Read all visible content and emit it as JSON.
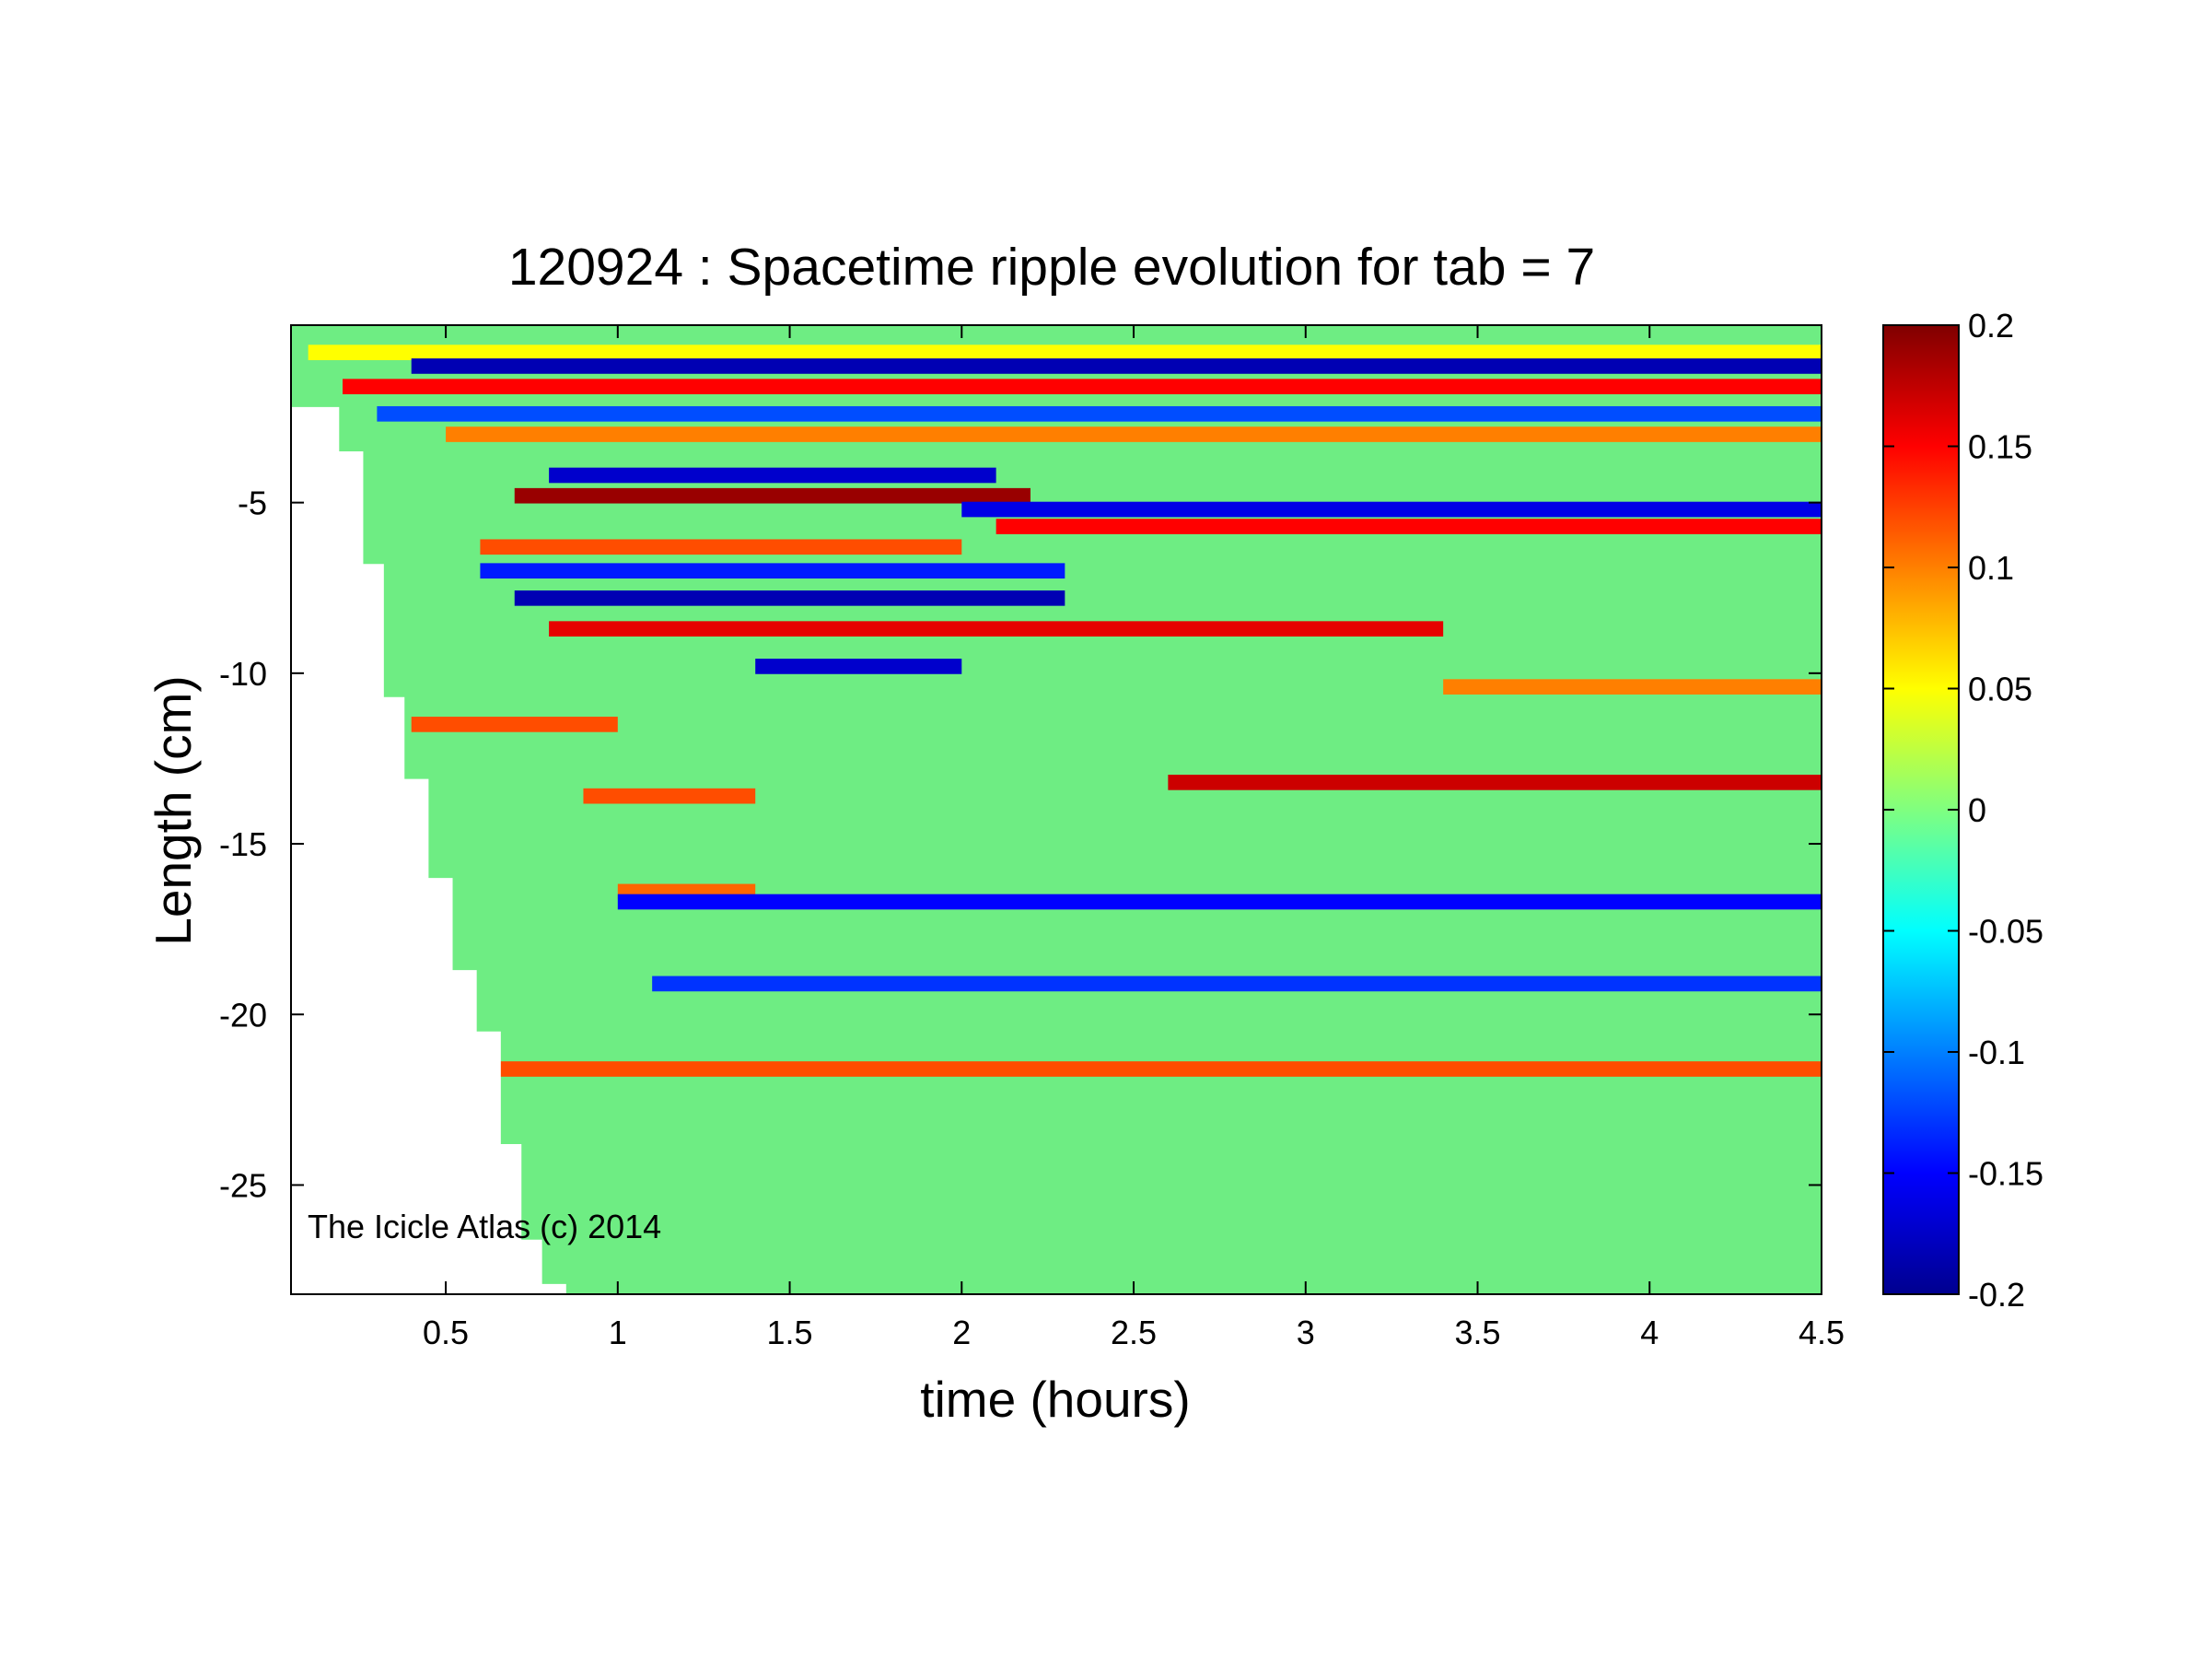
{
  "chart_data": {
    "type": "heatmap",
    "title": "120924 : Spacetime ripple evolution for tab = 7",
    "xlabel": "time (hours)",
    "ylabel": "Length (cm)",
    "xlim": [
      0.05,
      4.5
    ],
    "ylim": [
      -28.2,
      0.2
    ],
    "x_ticks": [
      "0.5",
      "1",
      "1.5",
      "2",
      "2.5",
      "3",
      "3.5",
      "4",
      "4.5"
    ],
    "y_ticks": [
      "-5",
      "-10",
      "-15",
      "-20",
      "-25"
    ],
    "colorbar": {
      "colormap": "jet",
      "clim": [
        -0.2,
        0.2
      ],
      "ticks": [
        "0.2",
        "0.15",
        "0.1",
        "0.05",
        "0",
        "-0.05",
        "-0.1",
        "-0.15",
        "-0.2"
      ]
    },
    "data_onset_boundary": [
      {
        "time": 0.12,
        "length": -2.2
      },
      {
        "time": 0.19,
        "length": -3.5
      },
      {
        "time": 0.26,
        "length": -6.8
      },
      {
        "time": 0.32,
        "length": -10.7
      },
      {
        "time": 0.38,
        "length": -13.1
      },
      {
        "time": 0.45,
        "length": -16.0
      },
      {
        "time": 0.52,
        "length": -18.7
      },
      {
        "time": 0.59,
        "length": -20.5
      },
      {
        "time": 0.66,
        "length": -23.8
      },
      {
        "time": 0.72,
        "length": -26.6
      },
      {
        "time": 0.78,
        "length": -27.9
      },
      {
        "time": 0.85,
        "length": -28.2
      }
    ],
    "dominant_bands": [
      {
        "length": -0.6,
        "t_start": 0.1,
        "t_end": 4.5,
        "value": 0.05
      },
      {
        "length": -1.0,
        "t_start": 0.4,
        "t_end": 4.5,
        "value": -0.18
      },
      {
        "length": -1.6,
        "t_start": 0.2,
        "t_end": 4.5,
        "value": 0.15
      },
      {
        "length": -2.4,
        "t_start": 0.3,
        "t_end": 4.5,
        "value": -0.12
      },
      {
        "length": -3.0,
        "t_start": 0.5,
        "t_end": 4.5,
        "value": 0.1
      },
      {
        "length": -4.2,
        "t_start": 0.8,
        "t_end": 2.1,
        "value": -0.17
      },
      {
        "length": -4.8,
        "t_start": 0.7,
        "t_end": 2.2,
        "value": 0.19
      },
      {
        "length": -5.2,
        "t_start": 2.0,
        "t_end": 4.5,
        "value": -0.16
      },
      {
        "length": -5.7,
        "t_start": 2.1,
        "t_end": 4.5,
        "value": 0.15
      },
      {
        "length": -6.3,
        "t_start": 0.6,
        "t_end": 2.0,
        "value": 0.12
      },
      {
        "length": -7.0,
        "t_start": 0.6,
        "t_end": 2.3,
        "value": -0.14
      },
      {
        "length": -7.8,
        "t_start": 0.7,
        "t_end": 2.3,
        "value": -0.18
      },
      {
        "length": -8.7,
        "t_start": 0.8,
        "t_end": 3.4,
        "value": 0.16
      },
      {
        "length": -9.8,
        "t_start": 1.4,
        "t_end": 2.0,
        "value": -0.17
      },
      {
        "length": -10.4,
        "t_start": 3.4,
        "t_end": 4.5,
        "value": 0.1
      },
      {
        "length": -11.5,
        "t_start": 0.4,
        "t_end": 1.0,
        "value": 0.12
      },
      {
        "length": -13.2,
        "t_start": 2.6,
        "t_end": 4.5,
        "value": 0.17
      },
      {
        "length": -13.6,
        "t_start": 0.9,
        "t_end": 1.4,
        "value": 0.12
      },
      {
        "length": -16.4,
        "t_start": 1.0,
        "t_end": 1.4,
        "value": 0.11
      },
      {
        "length": -16.7,
        "t_start": 1.0,
        "t_end": 4.5,
        "value": -0.15
      },
      {
        "length": -19.1,
        "t_start": 1.1,
        "t_end": 4.5,
        "value": -0.13
      },
      {
        "length": -21.6,
        "t_start": 0.6,
        "t_end": 4.5,
        "value": 0.12
      }
    ]
  },
  "watermark": "The Icicle Atlas (c) 2014"
}
